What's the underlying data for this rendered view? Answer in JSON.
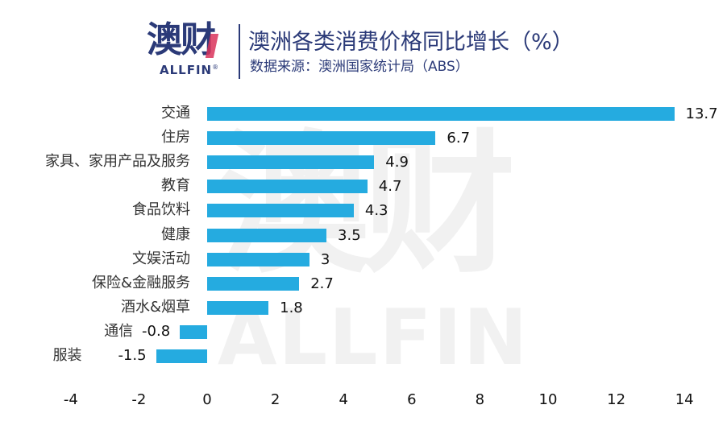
{
  "header": {
    "logo_cn": "澳财",
    "logo_en": "ALLFIN",
    "logo_reg": "®",
    "title": "澳洲各类消费价格同比增长（%）",
    "subtitle": "数据来源：澳洲国家统计局（ABS）"
  },
  "watermark": {
    "cn": "澳财",
    "en": "ALLFIN"
  },
  "colors": {
    "bar": "#25abe0",
    "brand": "#2b3a78",
    "accent": "#d9335a"
  },
  "chart_data": {
    "type": "bar",
    "orientation": "horizontal",
    "title": "澳洲各类消费价格同比增长（%）",
    "subtitle": "数据来源：澳洲国家统计局（ABS）",
    "xlabel": "",
    "ylabel": "",
    "xlim": [
      -4,
      14
    ],
    "grid": false,
    "legend": null,
    "categories": [
      "交通",
      "住房",
      "家具、家用产品及服务",
      "教育",
      "食品饮料",
      "健康",
      "文娱活动",
      "保险&金融服务",
      "酒水&烟草",
      "通信",
      "服装"
    ],
    "values": [
      13.7,
      6.7,
      4.9,
      4.7,
      4.3,
      3.5,
      3,
      2.7,
      1.8,
      -0.8,
      -1.5
    ],
    "value_labels": [
      "13.7",
      "6.7",
      "4.9",
      "4.7",
      "4.3",
      "3.5",
      "3",
      "2.7",
      "1.8",
      "-0.8",
      "-1.5"
    ],
    "x_ticks": [
      "-4",
      "-2",
      "0",
      "2",
      "4",
      "6",
      "8",
      "10",
      "12",
      "14"
    ]
  }
}
